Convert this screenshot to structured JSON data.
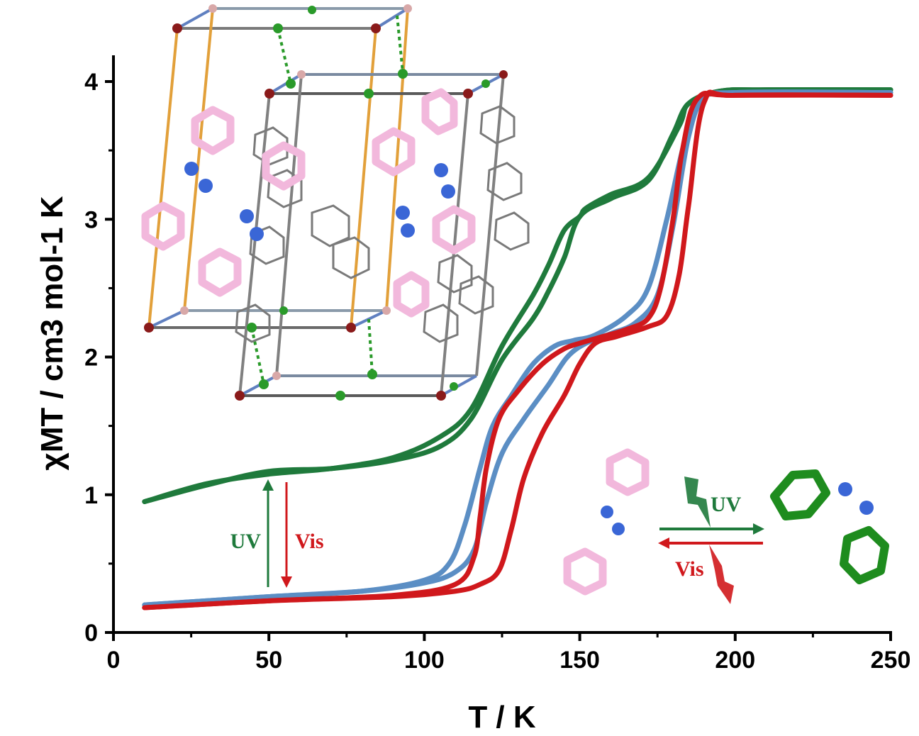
{
  "chart_data": {
    "type": "line",
    "title": "",
    "xlabel": "T / K",
    "ylabel": "χMT / cm3 mol-1 K",
    "xlim": [
      0,
      250
    ],
    "ylim": [
      0,
      4.2
    ],
    "x_ticks": [
      "0",
      "50",
      "100",
      "150",
      "200",
      "250"
    ],
    "y_ticks": [
      "0",
      "1",
      "2",
      "3",
      "4"
    ],
    "grid": false,
    "legend": "none",
    "series": [
      {
        "color": "#1f7a3c",
        "x": [
          10,
          30,
          50,
          70,
          90,
          105,
          115,
          125,
          135,
          140,
          145,
          150,
          160,
          172,
          180,
          185,
          195,
          210,
          250
        ],
        "y": [
          0.95,
          1.07,
          1.17,
          1.19,
          1.25,
          1.35,
          1.55,
          1.98,
          2.28,
          2.48,
          2.72,
          3.02,
          3.15,
          3.28,
          3.62,
          3.84,
          3.93,
          3.94,
          3.94
        ]
      },
      {
        "color": "#1f7a3c",
        "x": [
          10,
          30,
          50,
          70,
          90,
          105,
          115,
          125,
          135,
          140,
          145,
          150,
          152,
          160,
          172,
          182,
          185,
          195,
          210,
          250
        ],
        "y": [
          0.95,
          1.08,
          1.15,
          1.19,
          1.27,
          1.42,
          1.62,
          2.08,
          2.45,
          2.67,
          2.92,
          3.02,
          3.08,
          3.18,
          3.3,
          3.68,
          3.84,
          3.93,
          3.94,
          3.94
        ]
      },
      {
        "color": "#5b8ec4",
        "x": [
          10,
          50,
          80,
          100,
          108,
          113,
          118,
          122,
          128,
          135,
          142,
          148,
          155,
          165,
          172,
          178,
          183,
          188,
          200,
          250
        ],
        "y": [
          0.2,
          0.26,
          0.3,
          0.38,
          0.5,
          0.78,
          1.2,
          1.5,
          1.72,
          1.95,
          2.08,
          2.12,
          2.16,
          2.3,
          2.5,
          3.0,
          3.5,
          3.85,
          3.92,
          3.92
        ]
      },
      {
        "color": "#5b8ec4",
        "x": [
          10,
          50,
          80,
          100,
          110,
          116,
          120,
          125,
          132,
          140,
          146,
          152,
          160,
          168,
          175,
          180,
          185,
          190,
          200,
          250
        ],
        "y": [
          0.2,
          0.26,
          0.3,
          0.36,
          0.44,
          0.6,
          0.95,
          1.3,
          1.55,
          1.8,
          2.0,
          2.1,
          2.17,
          2.25,
          2.45,
          2.95,
          3.6,
          3.88,
          3.92,
          3.92
        ]
      },
      {
        "color": "#d0181c",
        "x": [
          10,
          50,
          90,
          110,
          116,
          118,
          120,
          124,
          130,
          138,
          145,
          150,
          156,
          165,
          172,
          176,
          180,
          183,
          188,
          200,
          250
        ],
        "y": [
          0.18,
          0.23,
          0.27,
          0.35,
          0.55,
          0.85,
          1.2,
          1.55,
          1.75,
          1.95,
          2.06,
          2.1,
          2.14,
          2.2,
          2.28,
          2.5,
          3.0,
          3.5,
          3.88,
          3.9,
          3.9
        ]
      },
      {
        "color": "#d0181c",
        "x": [
          10,
          50,
          90,
          110,
          118,
          124,
          128,
          132,
          138,
          145,
          150,
          155,
          162,
          172,
          178,
          182,
          185,
          190,
          200,
          250
        ],
        "y": [
          0.18,
          0.23,
          0.26,
          0.3,
          0.35,
          0.45,
          0.75,
          1.12,
          1.45,
          1.72,
          1.95,
          2.1,
          2.15,
          2.22,
          2.3,
          2.6,
          3.1,
          3.85,
          3.9,
          3.9
        ]
      }
    ],
    "annotations": {
      "uv_label": "UV",
      "vis_label": "Vis",
      "inset_uv_label": "UV",
      "inset_vis_label": "Vis"
    },
    "colors": {
      "green": "#1f7a3c",
      "blue": "#5b8ec4",
      "red": "#d0181c",
      "pink": "#f2b8dc",
      "azo_n": "#3a66d6"
    }
  }
}
